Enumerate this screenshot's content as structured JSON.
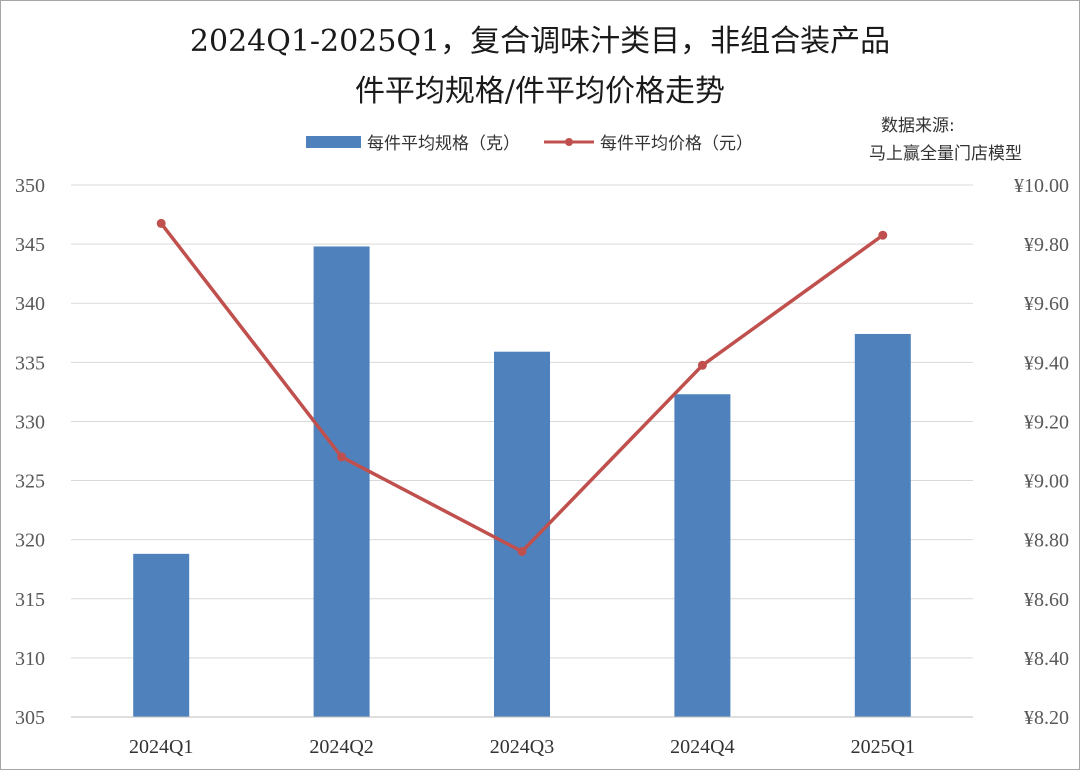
{
  "chart_data": {
    "type": "bar",
    "title_line1": "2024Q1-2025Q1，复合调味汁类目，非组合装产品",
    "title_line2": "件平均规格/件平均价格走势",
    "source_label": "数据来源:",
    "source_name": "马上赢全量门店模型",
    "categories": [
      "2024Q1",
      "2024Q2",
      "2024Q3",
      "2024Q4",
      "2025Q1"
    ],
    "series": [
      {
        "name": "每件平均规格（克）",
        "type": "bar",
        "axis": "left",
        "color": "#4f81bd",
        "values": [
          318.8,
          344.8,
          335.9,
          332.3,
          337.4
        ]
      },
      {
        "name": "每件平均价格（元）",
        "type": "line",
        "axis": "right",
        "color": "#c0504d",
        "values": [
          9.87,
          9.08,
          8.76,
          9.39,
          9.83
        ]
      }
    ],
    "y_left": {
      "min": 305,
      "max": 350,
      "step": 5,
      "ticks": [
        "305",
        "310",
        "315",
        "320",
        "325",
        "330",
        "335",
        "340",
        "345",
        "350"
      ]
    },
    "y_right": {
      "min": 8.2,
      "max": 10.0,
      "step": 0.2,
      "ticks": [
        "¥8.20",
        "¥8.40",
        "¥8.60",
        "¥8.80",
        "¥9.00",
        "¥9.20",
        "¥9.40",
        "¥9.60",
        "¥9.80",
        "¥10.00"
      ]
    },
    "gridlines": true,
    "legend_position": "top"
  }
}
